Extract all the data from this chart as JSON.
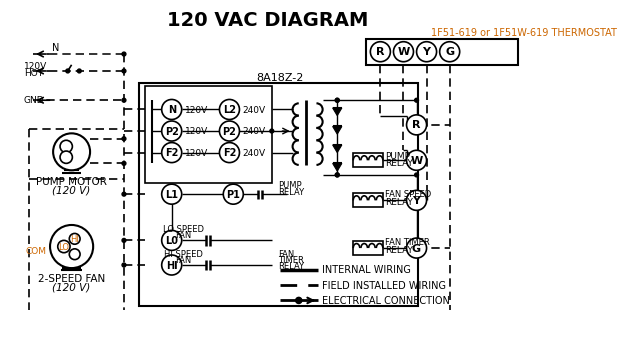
{
  "title": "120 VAC DIAGRAM",
  "bg_color": "#ffffff",
  "line_color": "#000000",
  "orange_color": "#cc6600",
  "thermostat_label": "1F51-619 or 1F51W-619 THERMOSTAT",
  "control_box_label": "8A18Z-2",
  "pump_motor_label1": "PUMP MOTOR",
  "pump_motor_label2": "(120 V)",
  "fan_label1": "2-SPEED FAN",
  "fan_label2": "(120 V)",
  "legend_items": [
    {
      "label": "INTERNAL WIRING"
    },
    {
      "label": "FIELD INSTALLED WIRING"
    },
    {
      "label": "ELECTRICAL CONNECTION"
    }
  ]
}
